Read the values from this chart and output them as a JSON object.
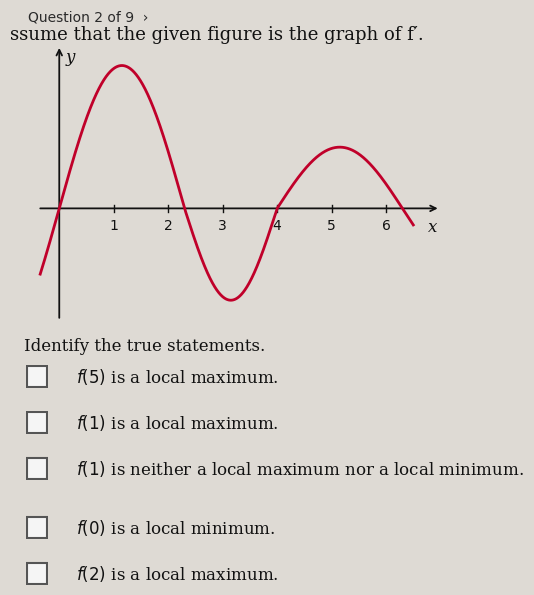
{
  "title_question": "Question 2 of 9  ›",
  "subtitle": "ssume that the given figure is the graph of f′.",
  "curve_color": "#c0002a",
  "curve_linewidth": 2.0,
  "axis_color": "#111111",
  "background_color": "#dedad4",
  "xlim": [
    -0.4,
    7.0
  ],
  "ylim": [
    -2.2,
    3.2
  ],
  "x_ticks": [
    1,
    2,
    3,
    4,
    5,
    6
  ],
  "y_label": "y",
  "x_label": "x",
  "identify_text": "Identify the true statements.",
  "statements": [
    "f(5) is a local maximum.",
    "f(1) is a local maximum.",
    "f(1) is neither a local maximum nor a local minimum.",
    "f(0) is a local minimum.",
    "f(2) is a local maximum."
  ],
  "text_fontsize": 12,
  "identify_fontsize": 12,
  "curve_zero1": 0.0,
  "curve_zero2": 2.3,
  "curve_zero3": 4.0,
  "curve_zero4": 6.3,
  "curve_amp1": 2.8,
  "curve_amp2": -1.8,
  "curve_amp3": 1.2
}
